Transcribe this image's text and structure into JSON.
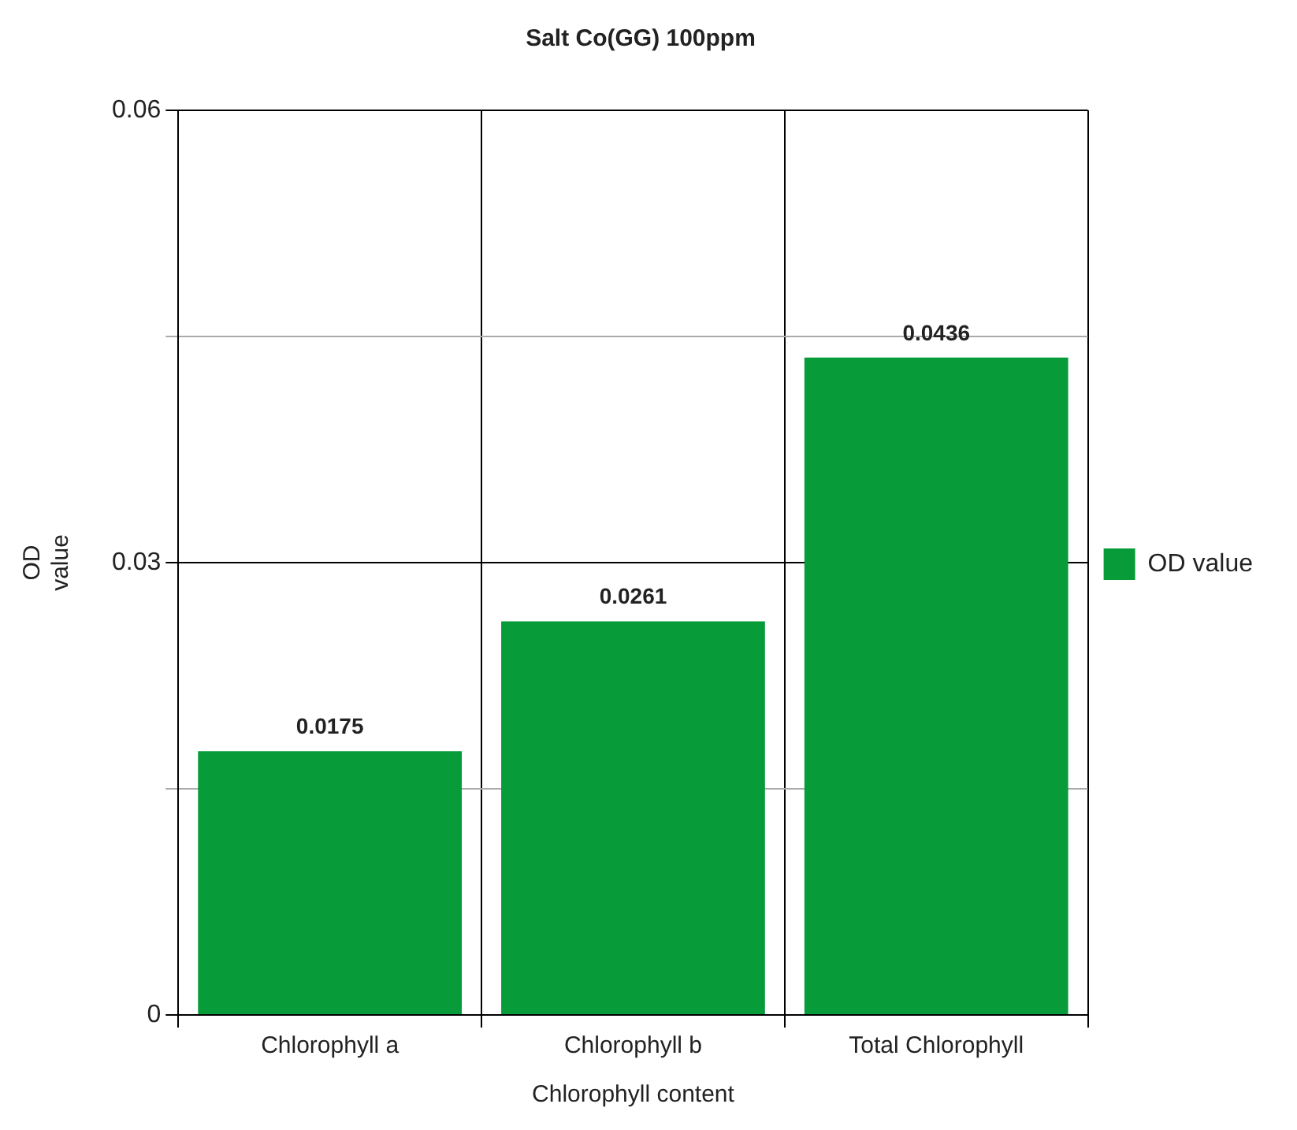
{
  "chart_data": {
    "type": "bar",
    "title": "Salt Co(GG) 100ppm",
    "xlabel": "Chlorophyll content",
    "ylabel": "OD value",
    "categories": [
      "Chlorophyll a",
      "Chlorophyll b",
      "Total Chlorophyll"
    ],
    "series": [
      {
        "name": "OD value",
        "color": "#079b39",
        "values": [
          0.0175,
          0.0261,
          0.0436
        ]
      }
    ],
    "ylim": [
      0,
      0.06
    ],
    "yticks": [
      0,
      {
        "value": 0.015,
        "label": null
      },
      0.03,
      {
        "value": 0.045,
        "label": null
      },
      0.06
    ],
    "grid": true,
    "legend": "right",
    "data_labels": true
  }
}
